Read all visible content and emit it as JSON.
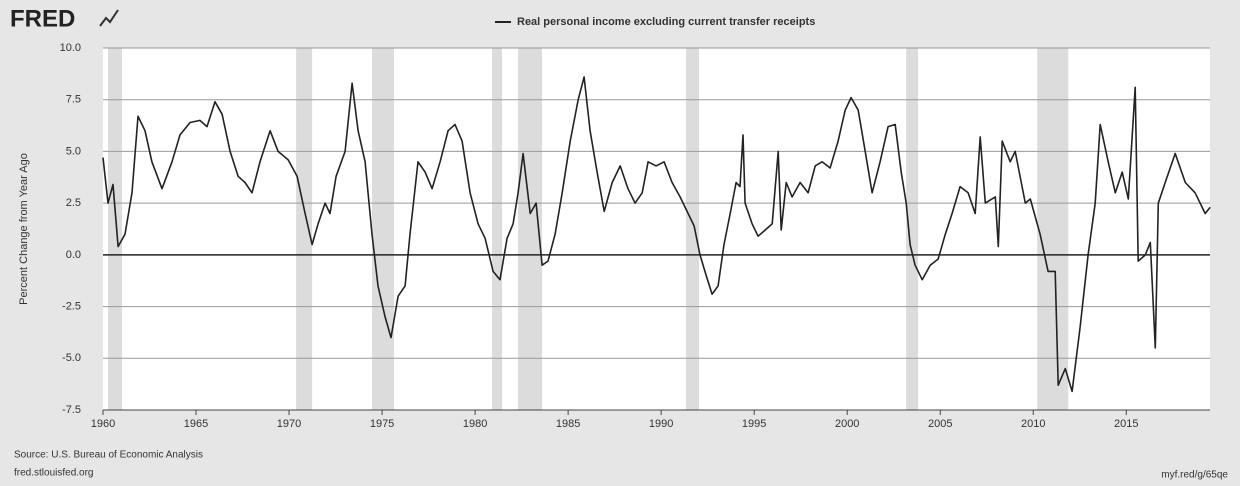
{
  "logo": "FRED",
  "chart_data": {
    "type": "line",
    "ylabel": "Percent Change from Year Ago",
    "source": "Source: U.S. Bureau of Economic Analysis",
    "site": "fred.stlouisfed.org",
    "short_url": "myf.red/g/65qe",
    "grid": true,
    "legend": "top",
    "xlim": [
      1960,
      2019.5
    ],
    "xticks": [
      1960,
      1965,
      1970,
      1975,
      1980,
      1985,
      1990,
      1995,
      2000,
      2005,
      2010,
      2015
    ],
    "ylim": [
      -7.5,
      10
    ],
    "yticks": [
      {
        "value": -7.5,
        "label": "-7.5"
      },
      {
        "value": -5,
        "label": "-5.0"
      },
      -2.5,
      {
        "value": 0,
        "label": "0.0"
      },
      2.5,
      {
        "value": 5,
        "label": "5.0"
      },
      7.5,
      {
        "value": 10,
        "label": "10.0"
      }
    ],
    "recessions": [
      [
        1960.27,
        1961.02
      ],
      [
        1970.38,
        1971.24
      ],
      [
        1974.46,
        1975.64
      ],
      [
        1980.91,
        1981.45
      ],
      [
        1982.31,
        1983.6
      ],
      [
        1991.34,
        1992.04
      ],
      [
        2003.17,
        2003.81
      ],
      [
        2010.21,
        2011.88
      ]
    ],
    "x": [
      1960.0,
      1960.27,
      1960.54,
      1960.81,
      1961.18,
      1961.56,
      1961.88,
      1962.26,
      1962.63,
      1963.17,
      1963.71,
      1964.14,
      1964.68,
      1965.21,
      1965.59,
      1966.02,
      1966.4,
      1966.83,
      1967.26,
      1967.63,
      1968.01,
      1968.44,
      1968.98,
      1969.41,
      1969.95,
      1970.43,
      1970.86,
      1971.24,
      1971.56,
      1971.94,
      1972.2,
      1972.53,
      1973.01,
      1973.39,
      1973.71,
      1974.09,
      1974.46,
      1974.78,
      1975.16,
      1975.48,
      1975.86,
      1976.24,
      1976.5,
      1976.93,
      1977.31,
      1977.69,
      1978.12,
      1978.55,
      1978.92,
      1979.3,
      1979.73,
      1980.16,
      1980.54,
      1980.97,
      1981.34,
      1981.72,
      1982.04,
      1982.31,
      1982.58,
      1982.96,
      1983.28,
      1983.6,
      1983.92,
      1984.3,
      1984.68,
      1985.11,
      1985.54,
      1985.86,
      1986.18,
      1986.56,
      1986.94,
      1987.37,
      1987.8,
      1988.22,
      1988.6,
      1988.98,
      1989.3,
      1989.73,
      1990.16,
      1990.59,
      1991.02,
      1991.45,
      1991.77,
      1992.09,
      1992.42,
      1992.74,
      1993.06,
      1993.38,
      1993.71,
      1994.03,
      1994.24,
      1994.4,
      1994.51,
      1994.89,
      1995.21,
      1995.59,
      1995.97,
      1996.29,
      1996.45,
      1996.72,
      1997.04,
      1997.47,
      1997.9,
      1998.28,
      1998.65,
      1999.08,
      1999.51,
      1999.89,
      2000.21,
      2000.59,
      2000.97,
      2001.34,
      2001.77,
      2002.2,
      2002.58,
      2002.9,
      2003.17,
      2003.38,
      2003.65,
      2004.03,
      2004.46,
      2004.89,
      2005.27,
      2005.64,
      2006.07,
      2006.5,
      2006.88,
      2007.15,
      2007.42,
      2007.96,
      2008.12,
      2008.33,
      2008.76,
      2009.03,
      2009.57,
      2009.84,
      2010.37,
      2010.8,
      2011.18,
      2011.34,
      2011.72,
      2012.09,
      2012.52,
      2012.95,
      2013.33,
      2013.6,
      2014.03,
      2014.41,
      2014.78,
      2015.11,
      2015.48,
      2015.64,
      2016.02,
      2016.29,
      2016.56,
      2016.72,
      2017.09,
      2017.63,
      2018.17,
      2018.7,
      2019.24,
      2019.51
    ],
    "series": [
      {
        "name": "Real personal income excluding current transfer receipts",
        "color": "#222222",
        "values": [
          4.7,
          2.5,
          3.4,
          0.4,
          1.0,
          3.0,
          6.7,
          6.0,
          4.5,
          3.2,
          4.5,
          5.8,
          6.4,
          6.5,
          6.2,
          7.4,
          6.8,
          5.0,
          3.8,
          3.5,
          3.0,
          4.5,
          6.0,
          5.0,
          4.6,
          3.8,
          2.0,
          0.5,
          1.5,
          2.5,
          2.0,
          3.8,
          5.0,
          8.3,
          6.0,
          4.5,
          1.0,
          -1.5,
          -3.0,
          -4.0,
          -2.0,
          -1.5,
          1.0,
          4.5,
          4.0,
          3.2,
          4.5,
          6.0,
          6.3,
          5.5,
          3.0,
          1.5,
          0.8,
          -0.8,
          -1.2,
          0.8,
          1.5,
          3.0,
          4.9,
          2.0,
          2.5,
          -0.5,
          -0.3,
          1.0,
          3.0,
          5.5,
          7.5,
          8.6,
          6.0,
          4.0,
          2.1,
          3.5,
          4.3,
          3.2,
          2.5,
          3.0,
          4.5,
          4.3,
          4.5,
          3.5,
          2.8,
          2.0,
          1.4,
          0.0,
          -1.0,
          -1.9,
          -1.5,
          0.5,
          2.0,
          3.5,
          3.3,
          5.8,
          2.5,
          1.5,
          0.9,
          1.2,
          1.5,
          5.0,
          1.2,
          3.5,
          2.8,
          3.5,
          3.0,
          4.3,
          4.5,
          4.2,
          5.5,
          7.0,
          7.6,
          7.0,
          5.0,
          3.0,
          4.5,
          6.2,
          6.3,
          4.0,
          2.5,
          0.5,
          -0.5,
          -1.2,
          -0.5,
          -0.2,
          1.0,
          2.0,
          3.3,
          3.0,
          2.0,
          5.7,
          2.5,
          2.8,
          0.4,
          5.5,
          4.5,
          5.0,
          2.5,
          2.7,
          1.0,
          -0.8,
          -0.8,
          -6.3,
          -5.5,
          -6.6,
          -3.5,
          0.0,
          2.5,
          6.3,
          4.5,
          3.0,
          4.0,
          2.7,
          8.1,
          -0.3,
          0.0,
          0.6,
          -4.5,
          2.5,
          3.5,
          4.9,
          3.5,
          3.0,
          2.0,
          2.3
        ]
      }
    ]
  }
}
